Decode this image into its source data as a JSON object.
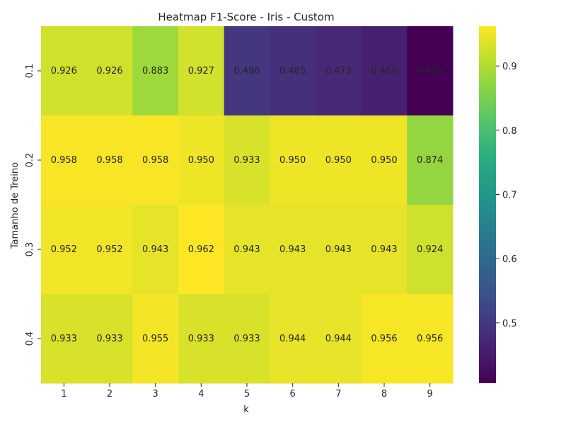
{
  "chart_data": {
    "type": "heatmap",
    "title": "Heatmap F1-Score - Iris - Custom",
    "xlabel": "k",
    "ylabel": "Tamanho de Treino",
    "x_categories": [
      "1",
      "2",
      "3",
      "4",
      "5",
      "6",
      "7",
      "8",
      "9"
    ],
    "y_categories": [
      "0.1",
      "0.2",
      "0.3",
      "0.4"
    ],
    "values": [
      [
        0.926,
        0.926,
        0.883,
        0.927,
        0.496,
        0.485,
        0.473,
        0.46,
        0.406
      ],
      [
        0.958,
        0.958,
        0.958,
        0.95,
        0.933,
        0.95,
        0.95,
        0.95,
        0.874
      ],
      [
        0.952,
        0.952,
        0.943,
        0.962,
        0.943,
        0.943,
        0.943,
        0.943,
        0.924
      ],
      [
        0.933,
        0.933,
        0.955,
        0.933,
        0.933,
        0.944,
        0.944,
        0.956,
        0.956
      ]
    ],
    "value_format": "0.000",
    "colormap": "viridis",
    "colorbar": {
      "vmin": 0.406,
      "vmax": 0.962,
      "ticks": [
        0.5,
        0.6,
        0.7,
        0.8,
        0.9
      ],
      "tick_labels": [
        "0.5",
        "0.6",
        "0.7",
        "0.8",
        "0.9"
      ]
    },
    "grid": false
  }
}
